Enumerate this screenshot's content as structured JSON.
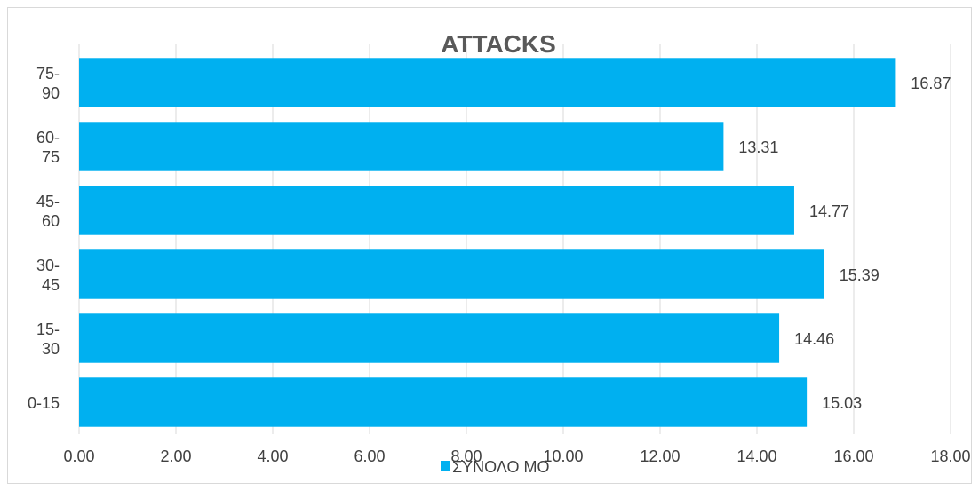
{
  "chart_data": {
    "type": "bar",
    "orientation": "horizontal",
    "title": "ATTACKS",
    "categories": [
      "0-15",
      "15-30",
      "30-45",
      "45-60",
      "60-75",
      "75-90"
    ],
    "category_label_lines": [
      [
        "0-15"
      ],
      [
        "15-",
        "30"
      ],
      [
        "30-",
        "45"
      ],
      [
        "45-",
        "60"
      ],
      [
        "60-",
        "75"
      ],
      [
        "75-",
        "90"
      ]
    ],
    "series": [
      {
        "name": "ΣΥΝΟΛΟ ΜΟ",
        "color": "#00b0f0",
        "values": [
          15.03,
          14.46,
          15.39,
          14.77,
          13.31,
          16.87
        ],
        "data_labels": [
          "15.03",
          "14.46",
          "15.39",
          "14.77",
          "13.31",
          "16.87"
        ]
      }
    ],
    "xlim": [
      0,
      18
    ],
    "x_ticks": [
      0,
      2,
      4,
      6,
      8,
      10,
      12,
      14,
      16,
      18
    ],
    "x_tick_labels": [
      "0.00",
      "2.00",
      "4.00",
      "6.00",
      "8.00",
      "10.00",
      "12.00",
      "14.00",
      "16.00",
      "18.00"
    ],
    "grid": "vertical",
    "legend_position": "bottom",
    "xlabel": "",
    "ylabel": ""
  }
}
